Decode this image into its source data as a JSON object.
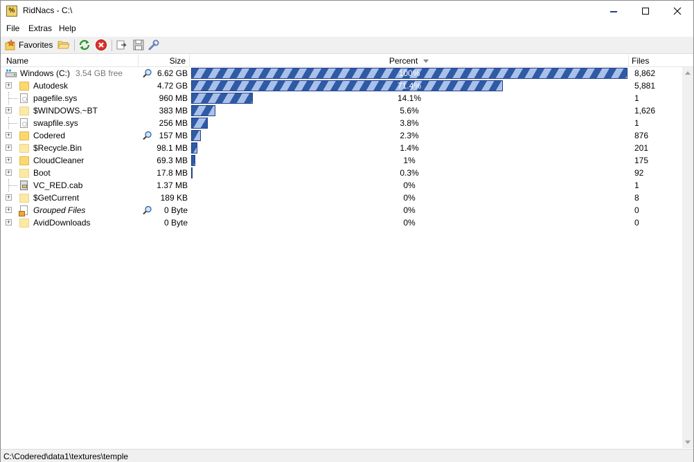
{
  "window": {
    "title": "RidNacs - C:\\"
  },
  "menu": {
    "file": "File",
    "extras": "Extras",
    "help": "Help"
  },
  "toolbar": {
    "favorites_label": "Favorites"
  },
  "columns": {
    "name": "Name",
    "size": "Size",
    "percent": "Percent",
    "files": "Files"
  },
  "root": {
    "name": "Windows (C:)",
    "free": "3.54 GB free",
    "size": "6.62 GB",
    "percent_label": "100%",
    "percent": 100,
    "files": "8,862"
  },
  "rows": [
    {
      "name": "Autodesk",
      "type": "folder",
      "expandable": true,
      "size": "4.72 GB",
      "percent_label": "71.4%",
      "percent": 71.4,
      "files": "5,881"
    },
    {
      "name": "pagefile.sys",
      "type": "file",
      "expandable": false,
      "size": "960 MB",
      "percent_label": "14.1%",
      "percent": 14.1,
      "files": "1"
    },
    {
      "name": "$WINDOWS.~BT",
      "type": "folder-light",
      "expandable": true,
      "size": "383 MB",
      "percent_label": "5.6%",
      "percent": 5.6,
      "files": "1,626"
    },
    {
      "name": "swapfile.sys",
      "type": "file",
      "expandable": false,
      "size": "256 MB",
      "percent_label": "3.8%",
      "percent": 3.8,
      "files": "1"
    },
    {
      "name": "Codered",
      "type": "folder",
      "expandable": true,
      "size": "157 MB",
      "percent_label": "2.3%",
      "percent": 2.3,
      "files": "876",
      "magnifier": true
    },
    {
      "name": "$Recycle.Bin",
      "type": "folder-light",
      "expandable": true,
      "size": "98.1 MB",
      "percent_label": "1.4%",
      "percent": 1.4,
      "files": "201"
    },
    {
      "name": "CloudCleaner",
      "type": "folder",
      "expandable": true,
      "size": "69.3 MB",
      "percent_label": "1%",
      "percent": 1.0,
      "files": "175"
    },
    {
      "name": "Boot",
      "type": "folder-light",
      "expandable": true,
      "size": "17.8 MB",
      "percent_label": "0.3%",
      "percent": 0.3,
      "files": "92"
    },
    {
      "name": "VC_RED.cab",
      "type": "cab",
      "expandable": false,
      "size": "1.37 MB",
      "percent_label": "0%",
      "percent": 0,
      "files": "1"
    },
    {
      "name": "$GetCurrent",
      "type": "folder-light",
      "expandable": true,
      "size": "189 KB",
      "percent_label": "0%",
      "percent": 0,
      "files": "8"
    },
    {
      "name": "Grouped Files",
      "type": "group",
      "expandable": true,
      "size": "0 Byte",
      "percent_label": "0%",
      "percent": 0,
      "files": "0",
      "magnifier": true,
      "italic": true
    },
    {
      "name": "AvidDownloads",
      "type": "folder-light",
      "expandable": true,
      "size": "0 Byte",
      "percent_label": "0%",
      "percent": 0,
      "files": "0"
    }
  ],
  "status": {
    "path": "C:\\Codered\\data1\\textures\\temple"
  }
}
